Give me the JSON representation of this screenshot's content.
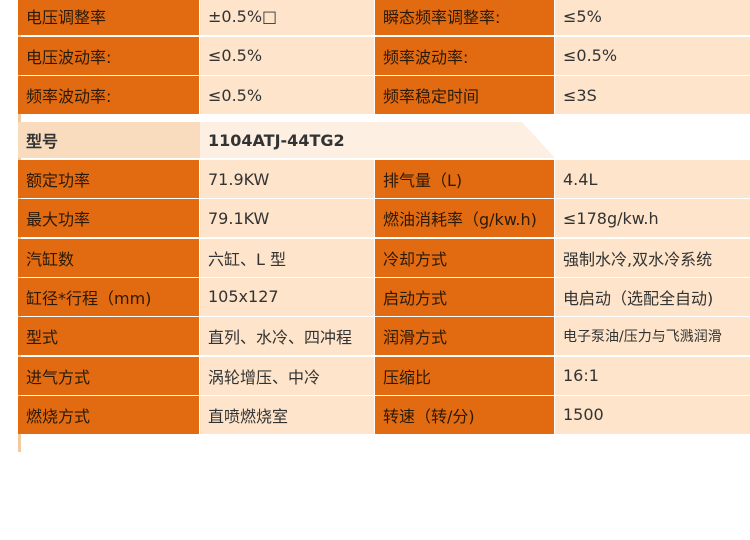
{
  "top_table": {
    "rows": [
      [
        "电压调整率",
        "±0.5%□",
        "瞬态频率调整率:",
        "≤5%"
      ],
      [
        "电压波动率:",
        "≤0.5%",
        "频率波动率:",
        "≤0.5%"
      ],
      [
        "频率波动率:",
        "≤0.5%",
        "频率稳定时间",
        "≤3S"
      ]
    ]
  },
  "model": {
    "label": "型号",
    "value": "1104ATJ-44TG2"
  },
  "spec_table": {
    "rows": [
      [
        "额定功率",
        "71.9KW",
        "排气量（L)",
        "4.4L"
      ],
      [
        "最大功率",
        "79.1KW",
        "燃油消耗率（g/kw.h)",
        "≤178g/kw.h"
      ],
      [
        "汽缸数",
        "六缸、L 型",
        "冷却方式",
        "强制水冷,双水冷系统"
      ],
      [
        "缸径*行程（mm)",
        "105x127",
        "启动方式",
        "电启动（选配全自动)"
      ],
      [
        "型式",
        "直列、水冷、四冲程",
        "润滑方式",
        "电子泵油/压力与飞溅润滑"
      ],
      [
        "进气方式",
        "涡轮增压、中冷",
        "压缩比",
        "16:1"
      ],
      [
        "燃烧方式",
        "直喷燃烧室",
        "转速（转/分)",
        "1500"
      ]
    ]
  }
}
